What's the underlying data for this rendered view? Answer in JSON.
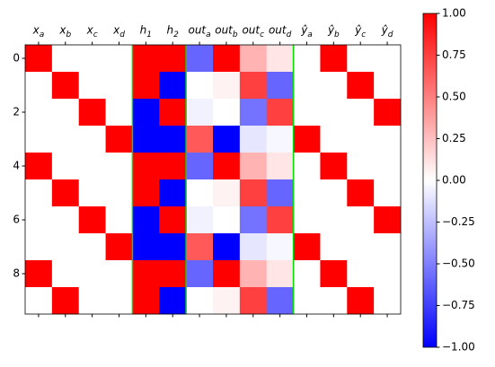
{
  "chart_data": {
    "type": "heatmap",
    "colormap": "bwr",
    "categories": [
      "x_a",
      "x_b",
      "x_c",
      "x_d",
      "h_1",
      "h_2",
      "out_a",
      "out_b",
      "out_c",
      "out_d",
      "ŷ_a",
      "ŷ_b",
      "ŷ_c",
      "ŷ_d"
    ],
    "ylim": [
      9.5,
      -0.5
    ],
    "yticks": [
      0,
      2,
      4,
      6,
      8
    ],
    "z": [
      [
        1,
        0,
        0,
        0,
        1,
        1,
        -0.6,
        1,
        0.3,
        0.1,
        0,
        1,
        0,
        0
      ],
      [
        0,
        1,
        0,
        0,
        1,
        -1,
        0,
        0.05,
        0.75,
        -0.6,
        0,
        0,
        1,
        0
      ],
      [
        0,
        0,
        1,
        0,
        -1,
        1,
        -0.05,
        0,
        -0.55,
        0.75,
        0,
        0,
        0,
        1
      ],
      [
        0,
        0,
        0,
        1,
        -1,
        -1,
        0.65,
        -1,
        -0.1,
        -0.03,
        1,
        0,
        0,
        0
      ],
      [
        1,
        0,
        0,
        0,
        1,
        1,
        -0.6,
        1,
        0.3,
        0.1,
        0,
        1,
        0,
        0
      ],
      [
        0,
        1,
        0,
        0,
        1,
        -1,
        0,
        0.05,
        0.75,
        -0.6,
        0,
        0,
        1,
        0
      ],
      [
        0,
        0,
        1,
        0,
        -1,
        1,
        -0.05,
        0,
        -0.55,
        0.75,
        0,
        0,
        0,
        1
      ],
      [
        0,
        0,
        0,
        1,
        -1,
        -1,
        0.65,
        -1,
        -0.1,
        -0.03,
        1,
        0,
        0,
        0
      ],
      [
        1,
        0,
        0,
        0,
        1,
        1,
        -0.6,
        1,
        0.3,
        0.1,
        0,
        1,
        0,
        0
      ],
      [
        0,
        1,
        0,
        0,
        1,
        -1,
        0,
        0.05,
        0.75,
        -0.6,
        0,
        0,
        1,
        0
      ]
    ],
    "clim": [
      -1,
      1
    ],
    "cticks": [
      {
        "value": -1,
        "label": "−1.00"
      },
      {
        "value": -0.75,
        "label": "−0.75"
      },
      {
        "value": -0.5,
        "label": "−0.50"
      },
      {
        "value": -0.25,
        "label": "−0.25"
      },
      {
        "value": 0,
        "label": "0.00"
      },
      {
        "value": 0.25,
        "label": "0.25"
      },
      {
        "value": 0.5,
        "label": "0.50"
      },
      {
        "value": 0.75,
        "label": "0.75"
      },
      {
        "value": 1,
        "label": "1.00"
      }
    ]
  }
}
